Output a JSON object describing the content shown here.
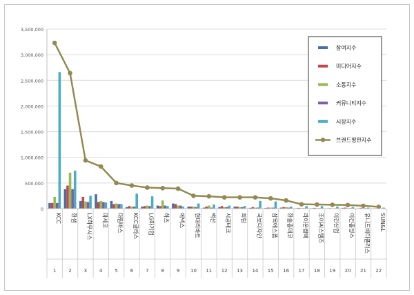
{
  "chart_data": {
    "type": "bar",
    "ylim": [
      0,
      3500000
    ],
    "yticks": [
      "0",
      "500,000",
      "1,000,000",
      "1,500,000",
      "2,000,000",
      "2,500,000",
      "3,000,000",
      "3,500,000"
    ],
    "categories": [
      "KCC",
      "한샘",
      "LX하우시스",
      "파세코",
      "대림바스",
      "KCC글라스",
      "LG화기업",
      "하츠",
      "에넥스",
      "현대리바트",
      "백산",
      "시공테크",
      "희림",
      "국보디자인",
      "삼목에스폼",
      "한솔홈데코",
      "라이온켐텍",
      "조이씨스템즈",
      "이건산업",
      "이건홀딩스",
      "유니드비티플러스",
      "SUN&L"
    ],
    "ranks": [
      "1",
      "2",
      "3",
      "4",
      "5",
      "6",
      "7",
      "8",
      "9",
      "10",
      "11",
      "12",
      "13",
      "14",
      "15",
      "16",
      "17",
      "18",
      "19",
      "20",
      "21",
      "22"
    ],
    "series": [
      {
        "name": "참여지수",
        "color": "#4a6ea9",
        "values": [
          110000,
          380000,
          150000,
          280000,
          150000,
          30000,
          40000,
          60000,
          100000,
          40000,
          20000,
          30000,
          40000,
          15000,
          15000,
          20000,
          10000,
          10000,
          8000,
          15000,
          5000,
          5000
        ]
      },
      {
        "name": "미디어지수",
        "color": "#be4b48",
        "values": [
          110000,
          450000,
          230000,
          130000,
          90000,
          50000,
          50000,
          50000,
          90000,
          40000,
          40000,
          50000,
          40000,
          30000,
          20000,
          30000,
          15000,
          15000,
          10000,
          20000,
          15000,
          8000
        ]
      },
      {
        "name": "소통지수",
        "color": "#98b954",
        "values": [
          230000,
          700000,
          140000,
          150000,
          100000,
          40000,
          60000,
          160000,
          60000,
          40000,
          60000,
          30000,
          30000,
          20000,
          20000,
          30000,
          10000,
          10000,
          5000,
          10000,
          10000,
          5000
        ]
      },
      {
        "name": "커뮤니티지수",
        "color": "#7d60a0",
        "values": [
          110000,
          380000,
          130000,
          130000,
          90000,
          40000,
          50000,
          60000,
          60000,
          30000,
          20000,
          30000,
          30000,
          20000,
          20000,
          20000,
          10000,
          10000,
          8000,
          10000,
          10000,
          5000
        ]
      },
      {
        "name": "시장지수",
        "color": "#4bacc6",
        "values": [
          2660000,
          740000,
          250000,
          120000,
          90000,
          290000,
          240000,
          50000,
          40000,
          100000,
          80000,
          60000,
          50000,
          150000,
          140000,
          40000,
          50000,
          50000,
          40000,
          30000,
          20000,
          20000
        ]
      }
    ],
    "line_series": {
      "name": "브랜드평판지수",
      "color": "#938953",
      "values": [
        3230000,
        2640000,
        940000,
        820000,
        500000,
        450000,
        410000,
        400000,
        390000,
        250000,
        240000,
        220000,
        220000,
        220000,
        200000,
        160000,
        85000,
        80000,
        75000,
        70000,
        55000,
        35000
      ]
    },
    "legend_position": "top-right"
  }
}
